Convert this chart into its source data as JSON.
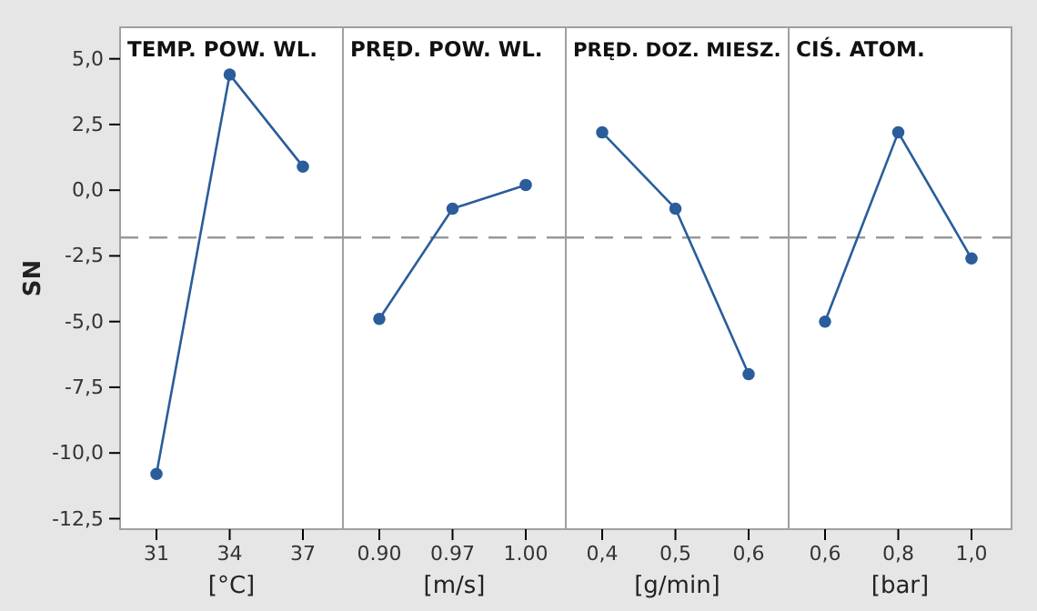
{
  "chart_data": [
    {
      "type": "line",
      "title": "TEMP. POW. WL.",
      "xlabel": "[°C]",
      "ylabel": "SN",
      "categories": [
        "31",
        "34",
        "37"
      ],
      "values": [
        -10.8,
        4.4,
        0.9
      ],
      "color": "#2a5d9a",
      "marker": "circle",
      "ylim": [
        -12.9,
        6.2
      ],
      "yticks": [
        {
          "value": 5,
          "label": "5,0"
        },
        {
          "value": 2.5,
          "label": "2,5"
        },
        {
          "value": 0,
          "label": "0,0"
        },
        {
          "value": -2.5,
          "label": "-2,5"
        },
        {
          "value": -5,
          "label": "-5,0"
        },
        {
          "value": -7.5,
          "label": "-7,5"
        },
        {
          "value": -10,
          "label": "-10,0"
        },
        {
          "value": -12.5,
          "label": "-12,5"
        }
      ],
      "ref_lines": [
        {
          "axis": "y",
          "value": -1.8,
          "color": "#999999",
          "line_style": "dashed"
        }
      ]
    },
    {
      "type": "line",
      "title": "PRĘD. POW. WL.",
      "xlabel": "[m/s]",
      "categories": [
        "0.90",
        "0.97",
        "1.00"
      ],
      "values": [
        -4.9,
        -0.7,
        0.2
      ],
      "color": "#2a5d9a",
      "marker": "circle",
      "ylim": [
        -12.9,
        6.2
      ],
      "tick_labels": "x",
      "ref_lines": [
        {
          "axis": "y",
          "value": -1.8,
          "color": "#999999",
          "line_style": "dashed"
        }
      ]
    },
    {
      "type": "line",
      "title": "PRĘD. DOZ. MIESZ.",
      "xlabel": "[g/min]",
      "categories": [
        "0,4",
        "0,5",
        "0,6"
      ],
      "values": [
        2.2,
        -0.7,
        -7.0
      ],
      "color": "#2a5d9a",
      "marker": "circle",
      "ylim": [
        -12.9,
        6.2
      ],
      "tick_labels": "x",
      "ref_lines": [
        {
          "axis": "y",
          "value": -1.8,
          "color": "#999999",
          "line_style": "dashed"
        }
      ]
    },
    {
      "type": "line",
      "title": "CIŚ. ATOM.",
      "xlabel": "[bar]",
      "categories": [
        "0,6",
        "0,8",
        "1,0"
      ],
      "values": [
        -5.0,
        2.2,
        -2.6
      ],
      "color": "#2a5d9a",
      "marker": "circle",
      "ylim": [
        -12.9,
        6.2
      ],
      "tick_labels": "x",
      "ref_lines": [
        {
          "axis": "y",
          "value": -1.8,
          "color": "#999999",
          "line_style": "dashed"
        }
      ]
    }
  ]
}
